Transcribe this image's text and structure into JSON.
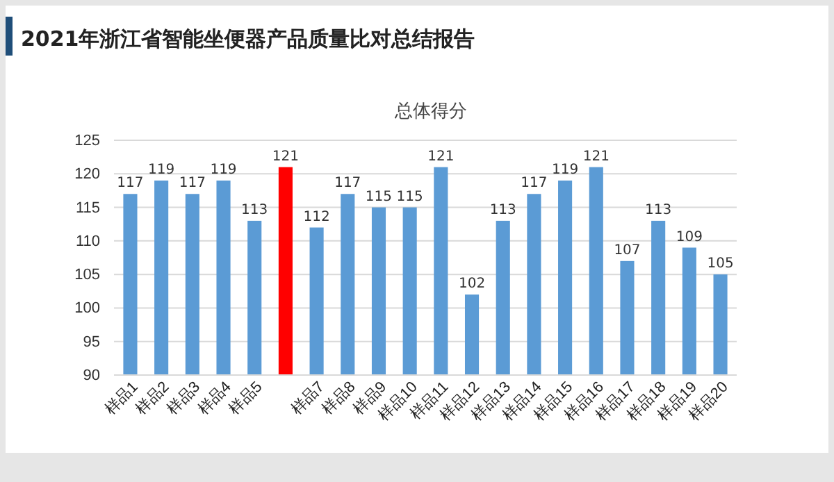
{
  "chart_data": {
    "type": "bar",
    "title": "2021年浙江省智能坐便器产品质量比对总结报告",
    "subtitle": "总体得分",
    "categories": [
      "样品1",
      "样品2",
      "样品3",
      "样品4",
      "样品5",
      null,
      "样品7",
      "样品8",
      "样品9",
      "样品10",
      "样品11",
      "样品12",
      "样品13",
      "样品14",
      "样品15",
      "样品16",
      "样品17",
      "样品18",
      "样品19",
      "样品20"
    ],
    "values": [
      117,
      119,
      117,
      119,
      113,
      121,
      112,
      117,
      115,
      115,
      121,
      102,
      113,
      117,
      119,
      121,
      107,
      113,
      109,
      105
    ],
    "colors": [
      "#5b9bd5",
      "#5b9bd5",
      "#5b9bd5",
      "#5b9bd5",
      "#5b9bd5",
      "#ff0000",
      "#5b9bd5",
      "#5b9bd5",
      "#5b9bd5",
      "#5b9bd5",
      "#5b9bd5",
      "#5b9bd5",
      "#5b9bd5",
      "#5b9bd5",
      "#5b9bd5",
      "#5b9bd5",
      "#5b9bd5",
      "#5b9bd5",
      "#5b9bd5",
      "#5b9bd5"
    ],
    "ylim": [
      90,
      125
    ],
    "yticks": [
      90,
      95,
      100,
      105,
      110,
      115,
      120,
      125
    ],
    "grid": "y",
    "data_labels": true
  }
}
